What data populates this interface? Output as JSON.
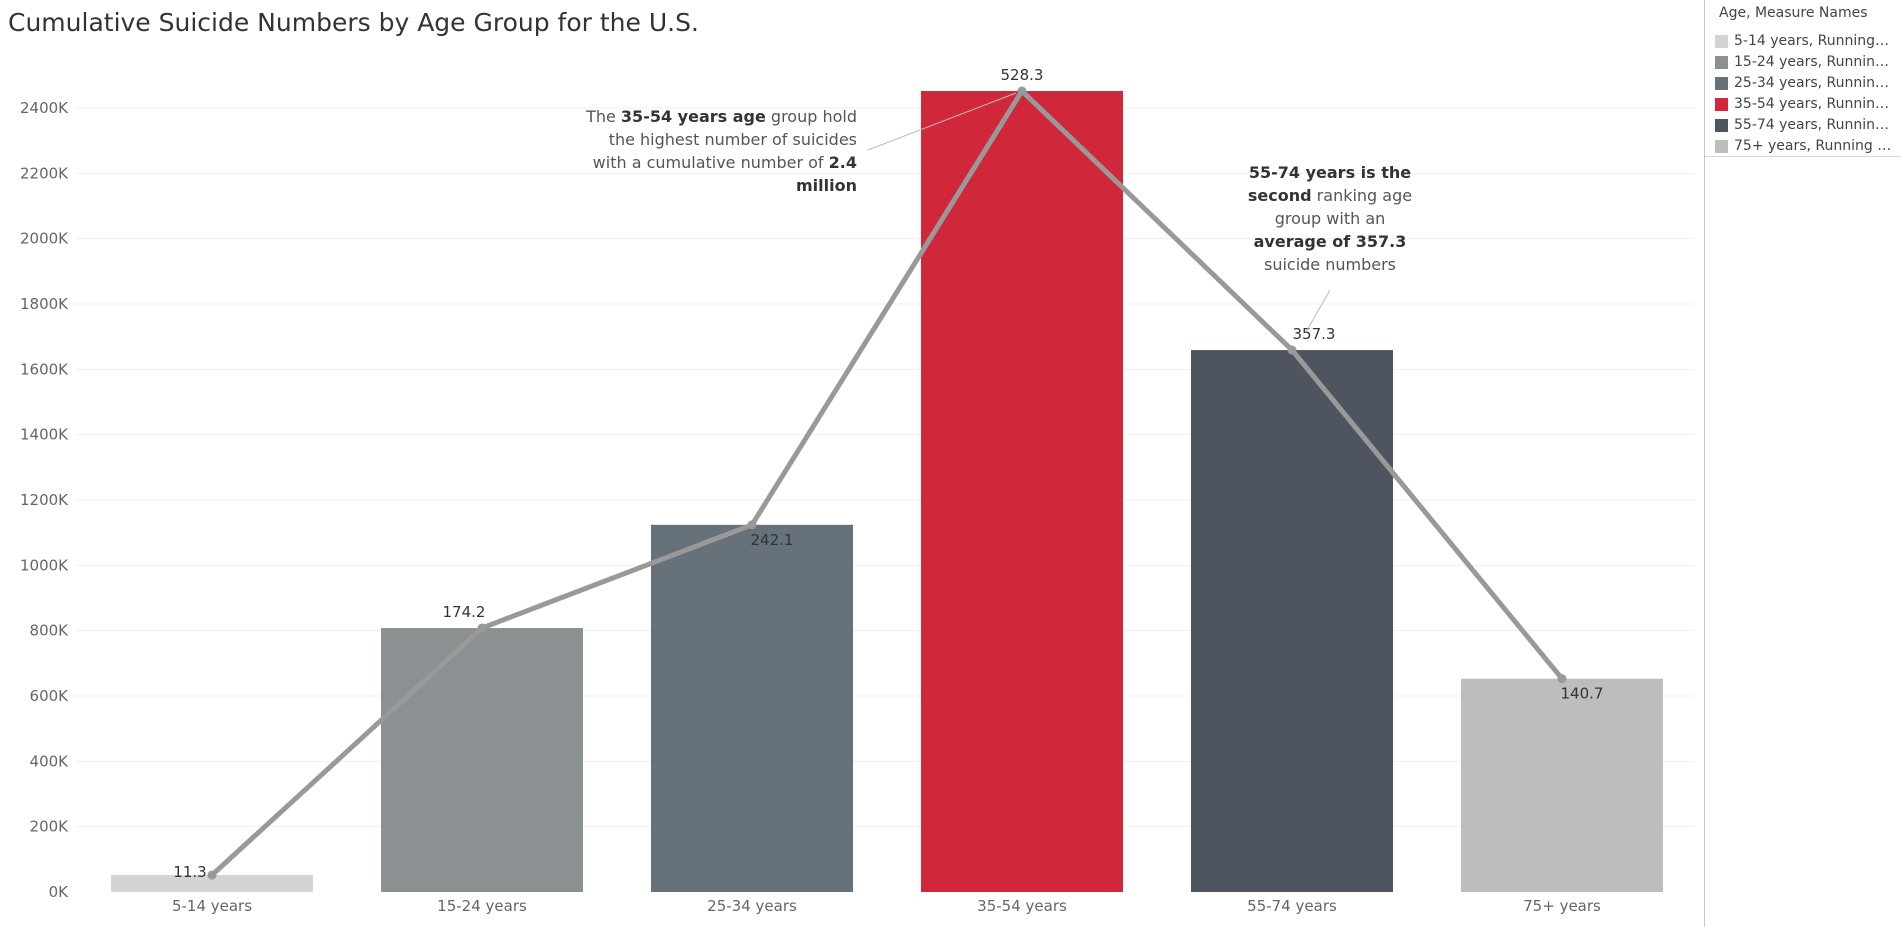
{
  "title": "Cumulative Suicide Numbers by Age Group for the U.S.",
  "legend": {
    "title": "Age, Measure Names",
    "items": [
      {
        "label": "5-14 years, Running S..",
        "color": "#d4d4d4"
      },
      {
        "label": "15-24 years, Running ..",
        "color": "#8b9193"
      },
      {
        "label": "25-34 years, Running ..",
        "color": "#66717a"
      },
      {
        "label": "35-54 years, Running ..",
        "color": "#d0273a"
      },
      {
        "label": "55-74 years, Running ..",
        "color": "#4f5560"
      },
      {
        "label": "75+ years, Running Su..",
        "color": "#bcbdbd"
      }
    ]
  },
  "annotations": {
    "left": [
      [
        {
          "t": "The "
        },
        {
          "t": "35-54 years age",
          "b": true
        },
        {
          "t": " group hold"
        }
      ],
      [
        {
          "t": "the highest number of suicides"
        }
      ],
      [
        {
          "t": "with a cumulative number of "
        },
        {
          "t": "2.4",
          "b": true
        }
      ],
      [
        {
          "t": "million",
          "b": true
        }
      ]
    ],
    "right": [
      [
        {
          "t": "55-74 years is the",
          "b": true
        }
      ],
      [
        {
          "t": "second",
          "b": true
        },
        {
          "t": " ranking age"
        }
      ],
      [
        {
          "t": "group with an"
        }
      ],
      [
        {
          "t": "average of 357.3",
          "b": true
        }
      ],
      [
        {
          "t": "suicide numbers"
        }
      ]
    ]
  },
  "chart_data": {
    "type": "bar",
    "categories": [
      "5-14 years",
      "15-24 years",
      "25-34 years",
      "35-54 years",
      "55-74 years",
      "75+ years"
    ],
    "bar_values": [
      52000,
      808000,
      1124000,
      2452000,
      1659000,
      653000
    ],
    "bar_colors": [
      "#d4d4d4",
      "#8b9193",
      "#66717a",
      "#d0273a",
      "#4f5560",
      "#bcbdbd"
    ],
    "line_values": [
      52000,
      808000,
      1124000,
      2452000,
      1659000,
      653000
    ],
    "line_labels": [
      "11.3",
      "174.2",
      "242.1",
      "528.3",
      "357.3",
      "140.7"
    ],
    "line_color": "#999999",
    "yticks": [
      0,
      200000,
      400000,
      600000,
      800000,
      1000000,
      1200000,
      1400000,
      1600000,
      1800000,
      2000000,
      2200000,
      2400000
    ],
    "ytick_labels": [
      "0K",
      "200K",
      "400K",
      "600K",
      "800K",
      "1000K",
      "1200K",
      "1400K",
      "1600K",
      "1800K",
      "2000K",
      "2200K",
      "2400K"
    ],
    "ylim": [
      0,
      2500000
    ],
    "grid": true
  }
}
